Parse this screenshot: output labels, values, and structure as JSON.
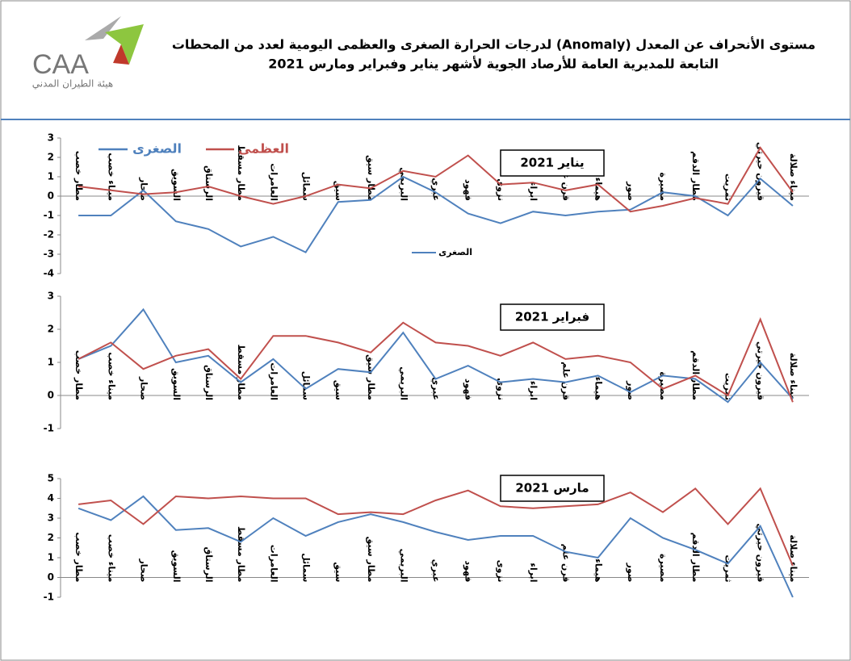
{
  "header": {
    "title": [
      "مستوى الأنحراف عن المعدل (Anomaly) لدرجات الحرارة الصغرى والعظمى اليومية لعدد من المحطات",
      "التابعة للمديرية العامة للأرصاد الجوية لأشهر يناير وفبراير ومارس 2021"
    ],
    "logo": "CAA",
    "logo_subtitle": "هيئة الطيران المدني"
  },
  "chart_data": [
    {
      "type": "line",
      "title": "يناير 2021",
      "categories": [
        "مطار خصب",
        "ميناء خصب",
        "صحار",
        "السويق",
        "الرستاق",
        "مطار مسقط",
        "العامرات",
        "سمائل",
        "سيق",
        "مطار سيق",
        "البريمي",
        "عبري",
        "فهود",
        "نزوى",
        "ابراء",
        "قرن علم",
        "هيماء",
        "صور",
        "مصيرة",
        "مطار الدقم",
        "ثمريت",
        "قيرون حيرتي",
        "ميناء صلالة"
      ],
      "series": [
        {
          "name": "الصغرى",
          "color": "#4f81bd",
          "values": [
            -1,
            -1,
            0.3,
            -1.3,
            -1.7,
            -2.6,
            -2.1,
            -2.9,
            -0.3,
            -0.2,
            1.0,
            0.2,
            -0.9,
            -1.4,
            -0.8,
            -1.0,
            -0.8,
            -0.7,
            0.2,
            0.0,
            -1.0,
            0.9,
            -0.5
          ]
        },
        {
          "name": "العظمى",
          "color": "#c0504d",
          "values": [
            0.5,
            0.3,
            0.1,
            0.2,
            0.5,
            0.0,
            -0.4,
            0.0,
            0.6,
            0.4,
            1.3,
            1.0,
            2.1,
            0.6,
            0.7,
            0.3,
            0.6,
            -0.8,
            -0.5,
            -0.1,
            -0.4,
            2.5,
            0.2
          ]
        }
      ],
      "ylim": [
        -4,
        3
      ],
      "yticks": [
        -4,
        -3,
        -2,
        -1,
        0,
        1,
        2,
        3
      ],
      "legend": "top-left"
    },
    {
      "type": "line",
      "title": "فبراير 2021",
      "categories": [
        "مطار خصب",
        "ميناء خصب",
        "صحار",
        "السويق",
        "الرستاق",
        "مطار مسقط",
        "العامرات",
        "سمائل",
        "سيق",
        "مطار سيق",
        "البريمي",
        "عبري",
        "فهود",
        "نزوى",
        "ابراء",
        "قرن علم",
        "هيماء",
        "صور",
        "مصيرة",
        "مطار الدقم",
        "ثمريت",
        "قيرون حيرتي",
        "ميناء صلالة"
      ],
      "series": [
        {
          "name": "الصغرى",
          "color": "#4f81bd",
          "values": [
            1.1,
            1.5,
            2.6,
            1.0,
            1.2,
            0.4,
            1.1,
            0.2,
            0.8,
            0.7,
            1.9,
            0.5,
            0.9,
            0.4,
            0.5,
            0.4,
            0.6,
            0.1,
            0.6,
            0.5,
            -0.2,
            1.0,
            -0.1
          ]
        },
        {
          "name": "العظمى",
          "color": "#c0504d",
          "values": [
            1.1,
            1.6,
            0.8,
            1.2,
            1.4,
            0.5,
            1.8,
            1.8,
            1.6,
            1.3,
            2.2,
            1.6,
            1.5,
            1.2,
            1.6,
            1.1,
            1.2,
            1.0,
            0.2,
            0.6,
            0.0,
            2.3,
            -0.2
          ]
        }
      ],
      "ylim": [
        -1,
        3
      ],
      "yticks": [
        -1,
        0,
        1,
        2,
        3
      ]
    },
    {
      "type": "line",
      "title": "مارس 2021",
      "categories": [
        "مطار خصب",
        "ميناء خصب",
        "صحار",
        "السويق",
        "الرستاق",
        "مطار مسقط",
        "العامرات",
        "سمائل",
        "سيق",
        "مطار سيق",
        "البريمي",
        "عبري",
        "فهود",
        "نزوى",
        "ابراء",
        "قرن علم",
        "هيماء",
        "صور",
        "مصيرة",
        "مطار الدقم",
        "ثمريت",
        "قيرون حيرتي",
        "ميناء صلالة"
      ],
      "series": [
        {
          "name": "الصغرى",
          "color": "#4f81bd",
          "values": [
            3.5,
            2.9,
            4.1,
            2.4,
            2.5,
            1.8,
            3.0,
            2.1,
            2.8,
            3.2,
            2.8,
            2.3,
            1.9,
            2.1,
            2.1,
            1.3,
            1.0,
            3.0,
            2.0,
            1.4,
            0.7,
            2.6,
            -1.0
          ]
        },
        {
          "name": "العظمى",
          "color": "#c0504d",
          "values": [
            3.7,
            3.9,
            2.7,
            4.1,
            4.0,
            4.1,
            4.0,
            4.0,
            3.2,
            3.3,
            3.2,
            3.9,
            4.4,
            3.6,
            3.5,
            3.6,
            3.7,
            4.3,
            3.3,
            4.5,
            2.7,
            4.5,
            0.6
          ]
        }
      ],
      "ylim": [
        -1,
        5
      ],
      "yticks": [
        -1,
        0,
        1,
        2,
        3,
        4,
        5
      ]
    }
  ]
}
